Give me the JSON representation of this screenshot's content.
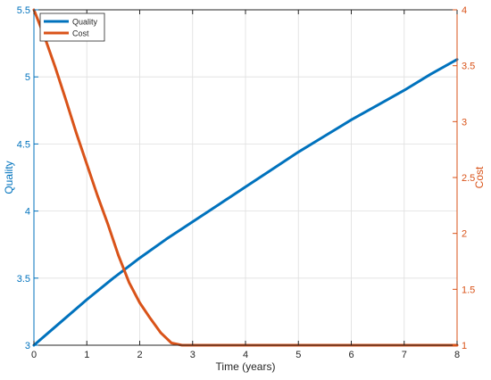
{
  "chart_data": {
    "type": "line",
    "xlabel": "Time (years)",
    "ylabel_left": "Quality",
    "ylabel_right": "Cost",
    "xlim": [
      0,
      8
    ],
    "ylim_left": [
      3,
      5.5
    ],
    "ylim_right": [
      1,
      4
    ],
    "x_ticks": [
      "0",
      "1",
      "2",
      "3",
      "4",
      "5",
      "6",
      "7",
      "8"
    ],
    "y_left_ticks": [
      "3",
      "3.5",
      "4",
      "4.5",
      "5",
      "5.5"
    ],
    "y_right_ticks": [
      "1",
      "1.5",
      "2",
      "2.5",
      "3",
      "3.5",
      "4"
    ],
    "grid": true,
    "legend_position": "top-left",
    "series": [
      {
        "name": "Quality",
        "axis": "left",
        "color": "#0072BD",
        "x": [
          0,
          0.5,
          1,
          1.5,
          2,
          2.5,
          3,
          3.5,
          4,
          4.5,
          5,
          5.5,
          6,
          6.5,
          7,
          7.5,
          8
        ],
        "y": [
          3.0,
          3.17,
          3.34,
          3.5,
          3.65,
          3.79,
          3.92,
          4.05,
          4.18,
          4.31,
          4.44,
          4.56,
          4.68,
          4.79,
          4.9,
          5.02,
          5.13
        ]
      },
      {
        "name": "Cost",
        "axis": "right",
        "color": "#D95319",
        "x": [
          0,
          0.2,
          0.4,
          0.6,
          0.8,
          1.0,
          1.2,
          1.4,
          1.6,
          1.8,
          2.0,
          2.2,
          2.4,
          2.6,
          2.8,
          3.0,
          4,
          5,
          6,
          7,
          8
        ],
        "y": [
          4.0,
          3.76,
          3.49,
          3.2,
          2.9,
          2.62,
          2.34,
          2.08,
          1.8,
          1.56,
          1.38,
          1.24,
          1.11,
          1.02,
          1.0,
          1.0,
          1.0,
          1.0,
          1.0,
          1.0,
          1.0
        ]
      }
    ]
  }
}
